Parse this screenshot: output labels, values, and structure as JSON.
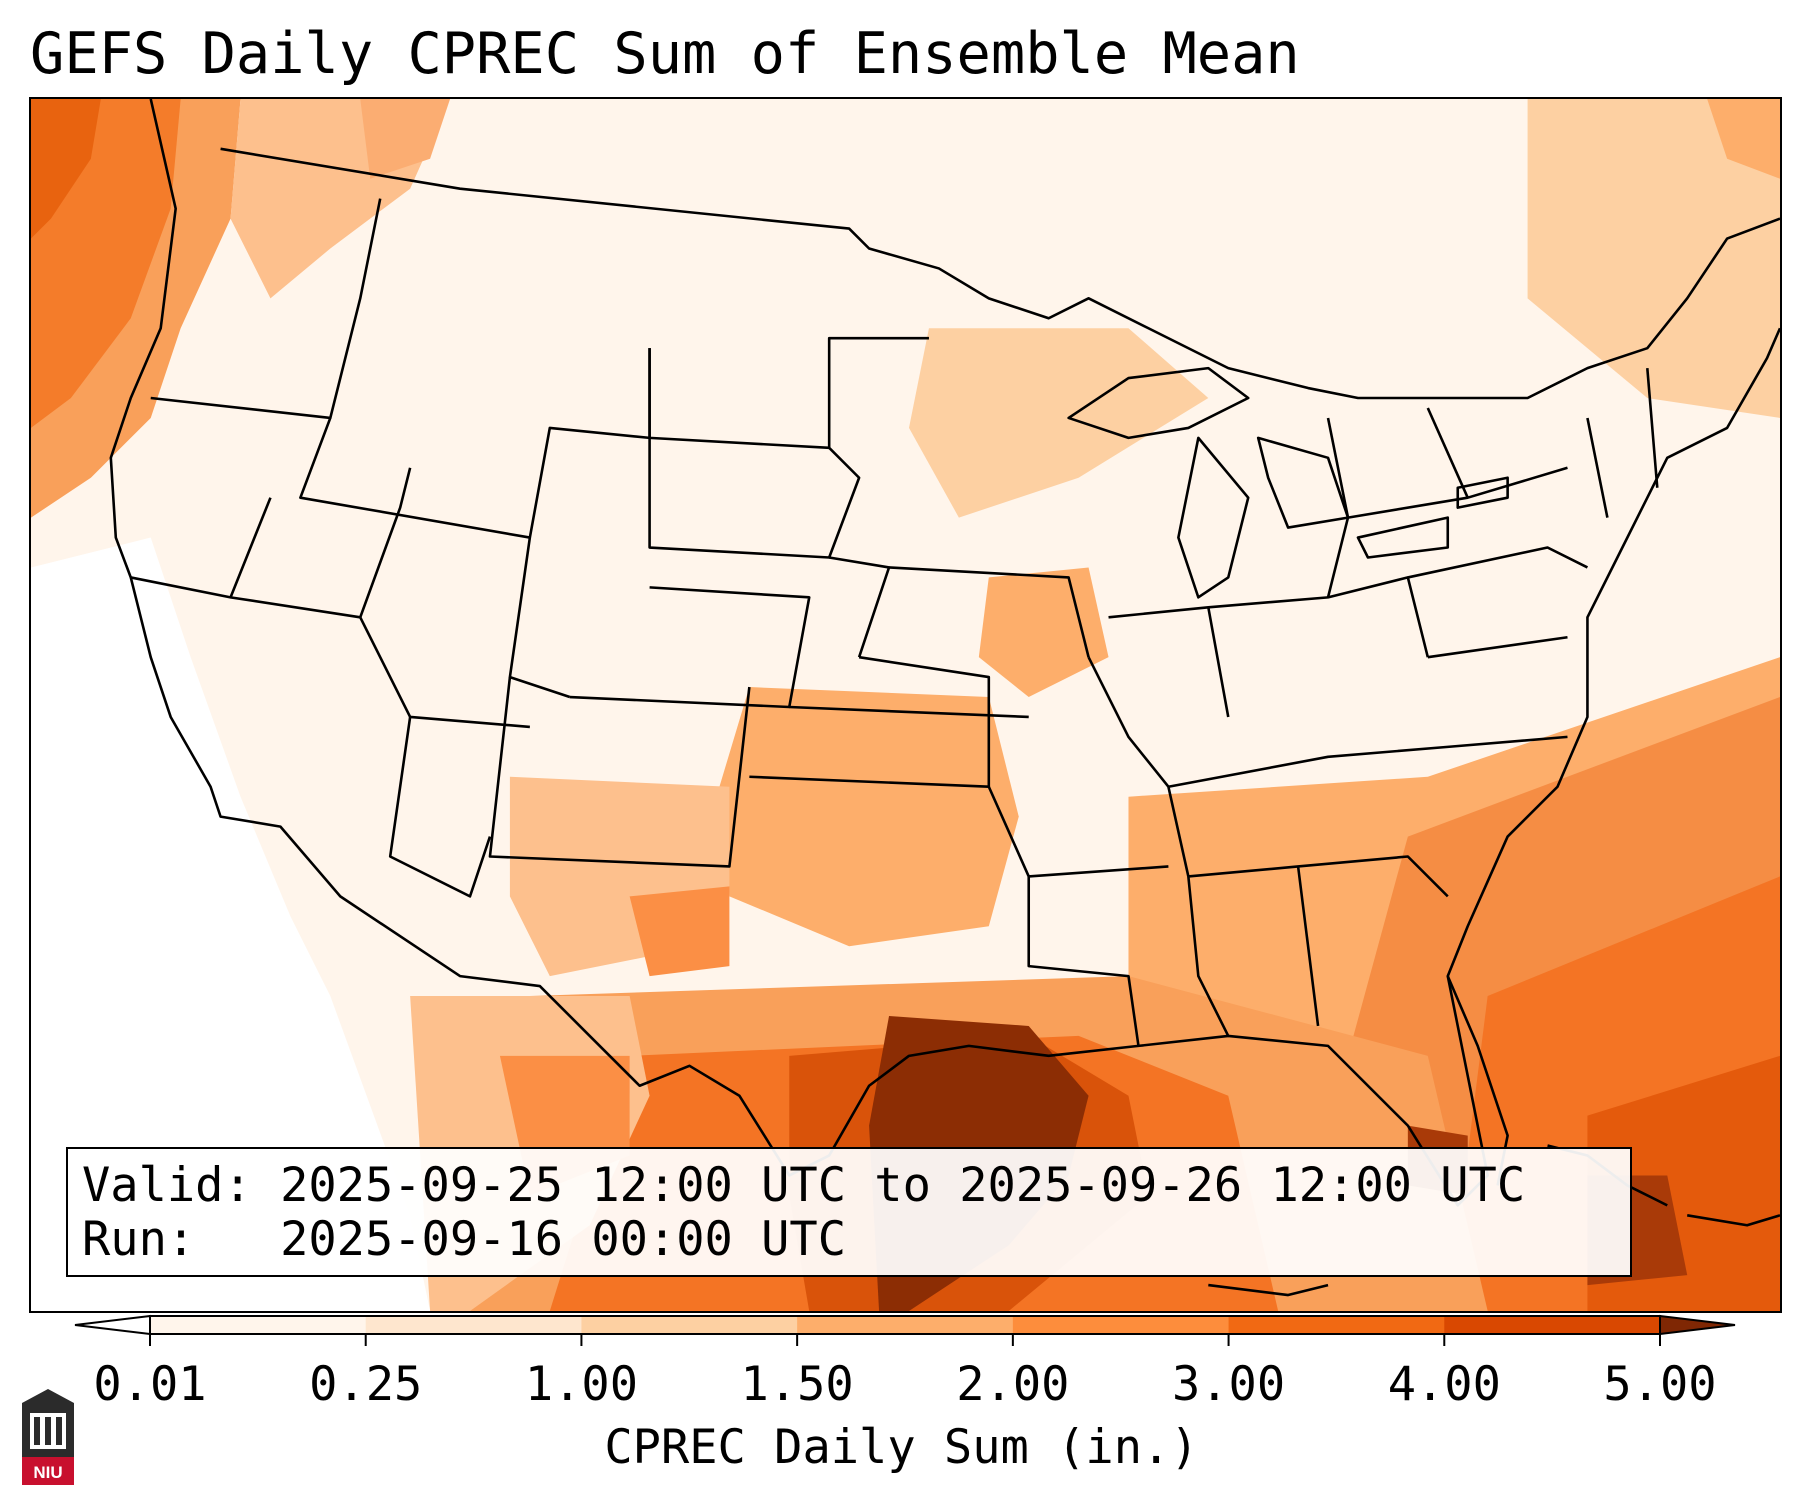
{
  "title": "GEFS Daily CPREC Sum of Ensemble Mean",
  "info": {
    "valid_line": "Valid: 2025-09-25 12:00 UTC to 2025-09-26 12:00 UTC",
    "run_line": "Run:   2025-09-16 00:00 UTC"
  },
  "colorbar": {
    "label": "CPREC Daily Sum (in.)",
    "ticks": [
      "0.01",
      "0.25",
      "1.00",
      "1.50",
      "2.00",
      "3.00",
      "4.00",
      "5.00"
    ],
    "colors": [
      "#fff5eb",
      "#fee6ce",
      "#fdd0a2",
      "#fdae6b",
      "#fd8d3c",
      "#f16913",
      "#d94801",
      "#8c2d04"
    ],
    "under_color": "#ffffff",
    "over_color": "#7f2704"
  },
  "logo": {
    "text": "NIU",
    "color": "#c8102e"
  },
  "icons": [
    "niu-logo-icon"
  ]
}
